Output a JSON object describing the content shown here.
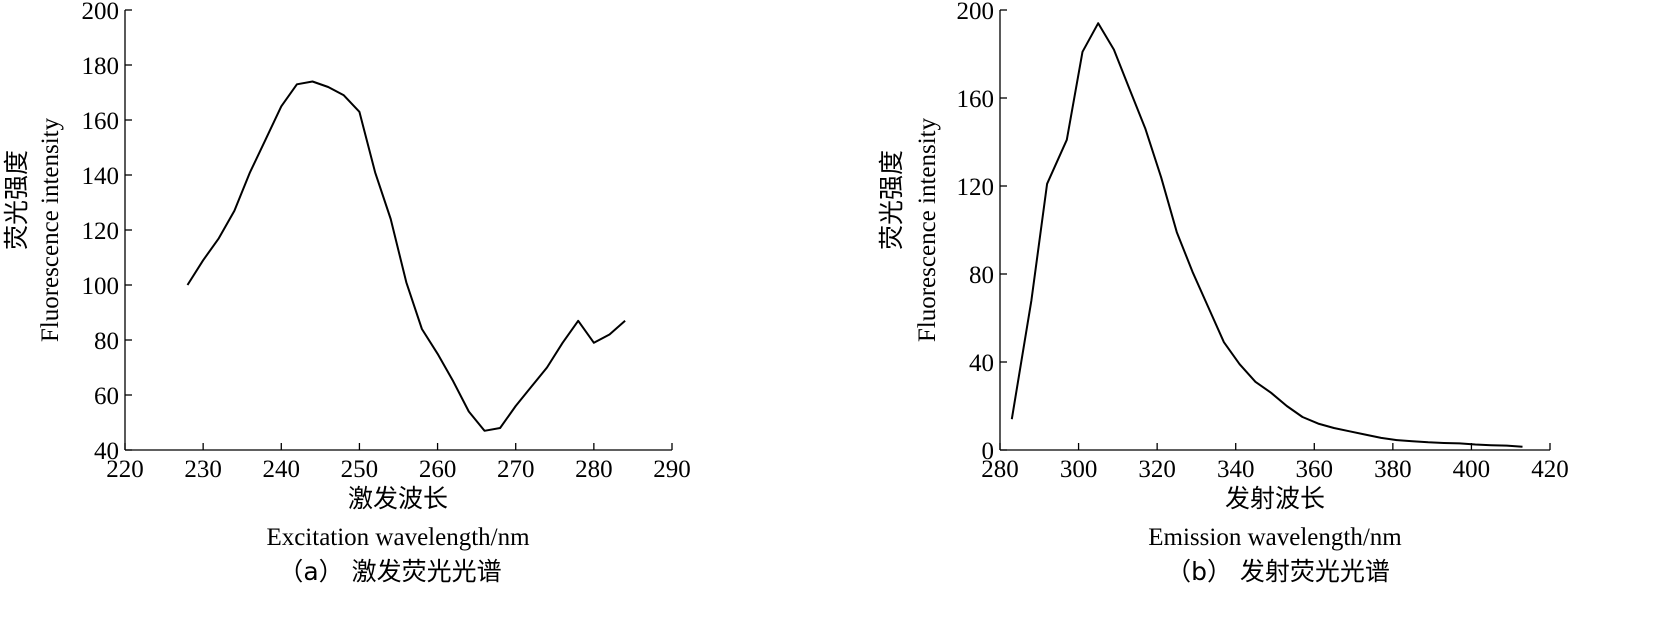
{
  "chart_data": [
    {
      "type": "line",
      "caption": "（a） 激发荧光光谱",
      "xlabel_cn": "激发波长",
      "xlabel": "Excitation wavelength/nm",
      "ylabel_cn": "荧光强度",
      "ylabel": "Fluorescence intensity",
      "xlim": [
        220,
        290
      ],
      "ylim": [
        40,
        200
      ],
      "xticks": [
        220,
        230,
        240,
        250,
        260,
        270,
        280,
        290
      ],
      "yticks": [
        40,
        60,
        80,
        100,
        120,
        140,
        160,
        180,
        200
      ],
      "grid": false,
      "series": [
        {
          "x": [
            228,
            230,
            232,
            234,
            236,
            238,
            240,
            242,
            244,
            246,
            248,
            250,
            252,
            254,
            256,
            258,
            260,
            262,
            264,
            266,
            268,
            270,
            272,
            274,
            276,
            278,
            280,
            282,
            284
          ],
          "values": [
            100,
            109,
            117,
            127,
            141,
            153,
            165,
            173,
            174,
            172,
            169,
            163,
            141,
            124,
            101,
            84,
            75,
            65,
            54,
            47,
            48,
            56,
            63,
            70,
            79,
            87,
            79,
            82,
            87
          ]
        }
      ]
    },
    {
      "type": "line",
      "caption": "（b） 发射荧光光谱",
      "xlabel_cn": "发射波长",
      "xlabel": "Emission wavelength/nm",
      "ylabel_cn": "荧光强度",
      "ylabel": "Fluorescence intensity",
      "xlim": [
        280,
        420
      ],
      "ylim": [
        0,
        200
      ],
      "xticks": [
        280,
        300,
        320,
        340,
        360,
        380,
        400,
        420
      ],
      "yticks": [
        0,
        40,
        80,
        120,
        160,
        200
      ],
      "grid": false,
      "series": [
        {
          "x": [
            283,
            288,
            292,
            297,
            301,
            305,
            309,
            313,
            317,
            321,
            325,
            329,
            333,
            337,
            341,
            345,
            349,
            353,
            357,
            361,
            365,
            369,
            373,
            377,
            381,
            385,
            389,
            393,
            397,
            401,
            405,
            409,
            413
          ],
          "values": [
            14,
            68,
            121,
            141,
            181,
            194,
            182,
            164,
            146,
            124,
            99,
            81,
            65,
            49,
            39,
            31,
            26,
            20,
            15,
            12,
            10,
            8.5,
            7,
            5.5,
            4.5,
            4,
            3.5,
            3.2,
            3,
            2.5,
            2.2,
            2,
            1.5
          ]
        }
      ]
    }
  ]
}
